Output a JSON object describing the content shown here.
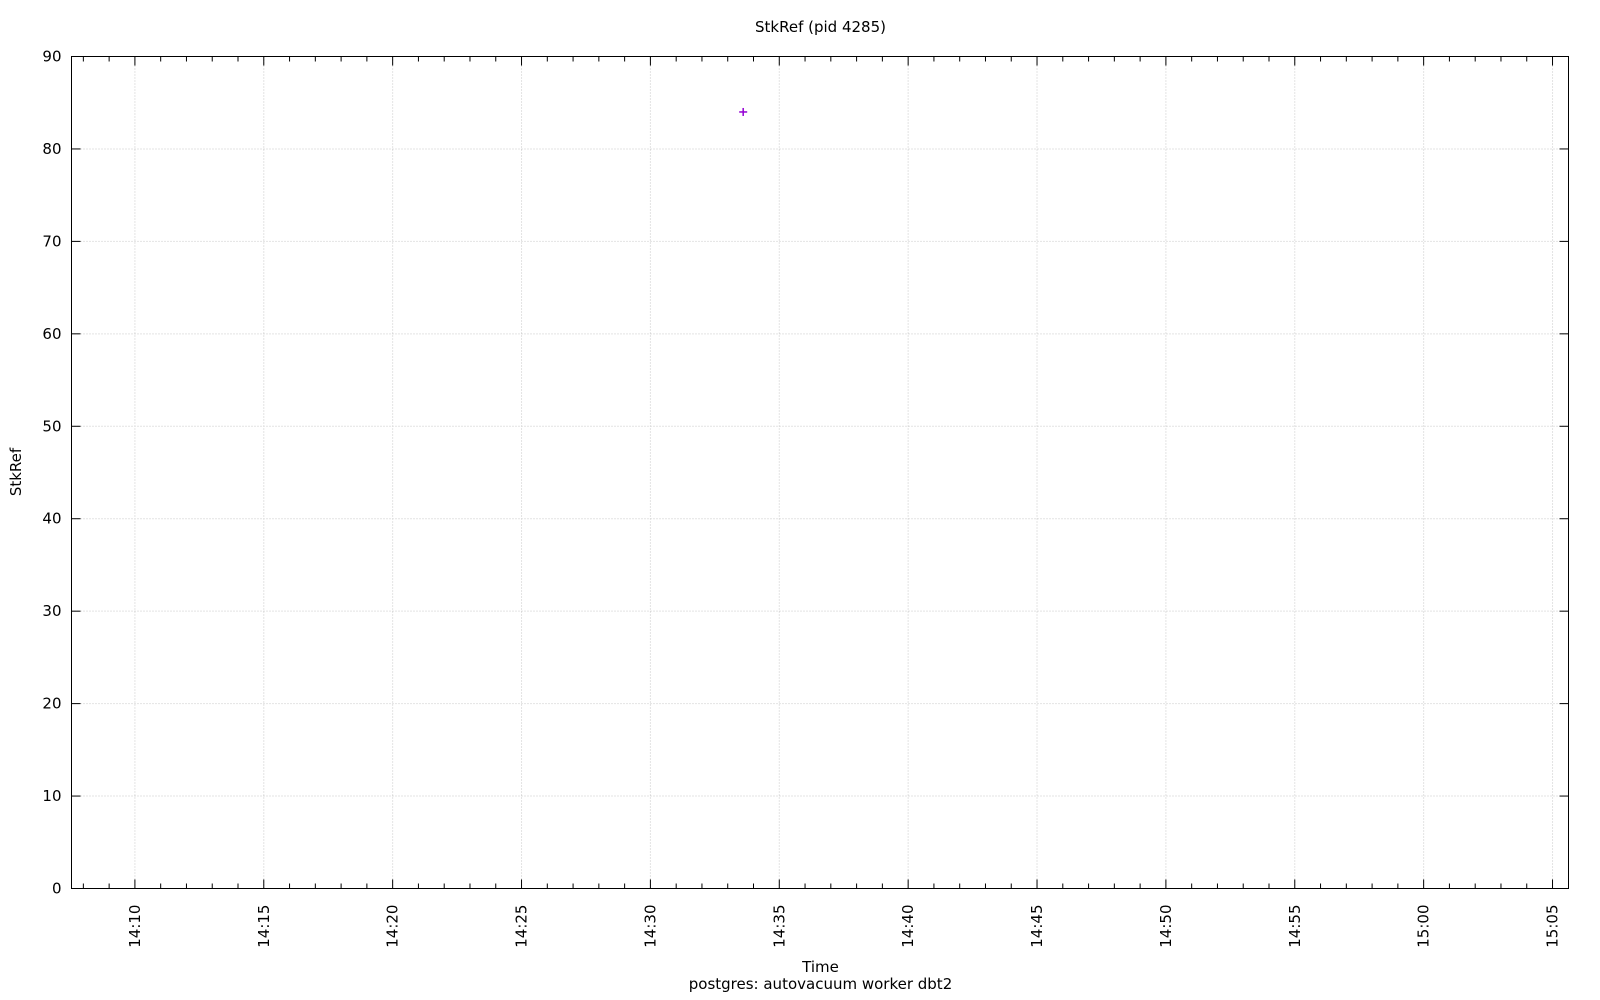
{
  "chart_data": {
    "type": "scatter",
    "title": "StkRef (pid 4285)",
    "xlabel": "Time",
    "xlabel_sub": "postgres: autovacuum worker dbt2",
    "ylabel": "StkRef",
    "ylim": [
      0,
      90
    ],
    "xlim_minutes": [
      847.54,
      905.62
    ],
    "grid": true,
    "legend": "none",
    "y_ticks": [
      {
        "value": 0,
        "label": "0"
      },
      {
        "value": 10,
        "label": "10"
      },
      {
        "value": 20,
        "label": "20"
      },
      {
        "value": 30,
        "label": "30"
      },
      {
        "value": 40,
        "label": "40"
      },
      {
        "value": 50,
        "label": "50"
      },
      {
        "value": 60,
        "label": "60"
      },
      {
        "value": 70,
        "label": "70"
      },
      {
        "value": 80,
        "label": "80"
      },
      {
        "value": 90,
        "label": "90"
      }
    ],
    "x_ticks": [
      {
        "minutes": 850,
        "label": "14:10"
      },
      {
        "minutes": 855,
        "label": "14:15"
      },
      {
        "minutes": 860,
        "label": "14:20"
      },
      {
        "minutes": 865,
        "label": "14:25"
      },
      {
        "minutes": 870,
        "label": "14:30"
      },
      {
        "minutes": 875,
        "label": "14:35"
      },
      {
        "minutes": 880,
        "label": "14:40"
      },
      {
        "minutes": 885,
        "label": "14:45"
      },
      {
        "minutes": 890,
        "label": "14:50"
      },
      {
        "minutes": 895,
        "label": "14:55"
      },
      {
        "minutes": 900,
        "label": "15:00"
      },
      {
        "minutes": 905,
        "label": "15:05"
      }
    ],
    "x_minor_step_minutes": 1,
    "marker": {
      "shape": "plus",
      "color": "#9400d3"
    },
    "series": [
      {
        "name": "StkRef",
        "points": [
          {
            "time": "14:33:35",
            "x_minutes": 873.6,
            "y": 84
          }
        ]
      }
    ],
    "colors": {
      "border": "#000000",
      "grid": "#c8c8c8",
      "background": "#ffffff",
      "text": "#000000"
    }
  }
}
